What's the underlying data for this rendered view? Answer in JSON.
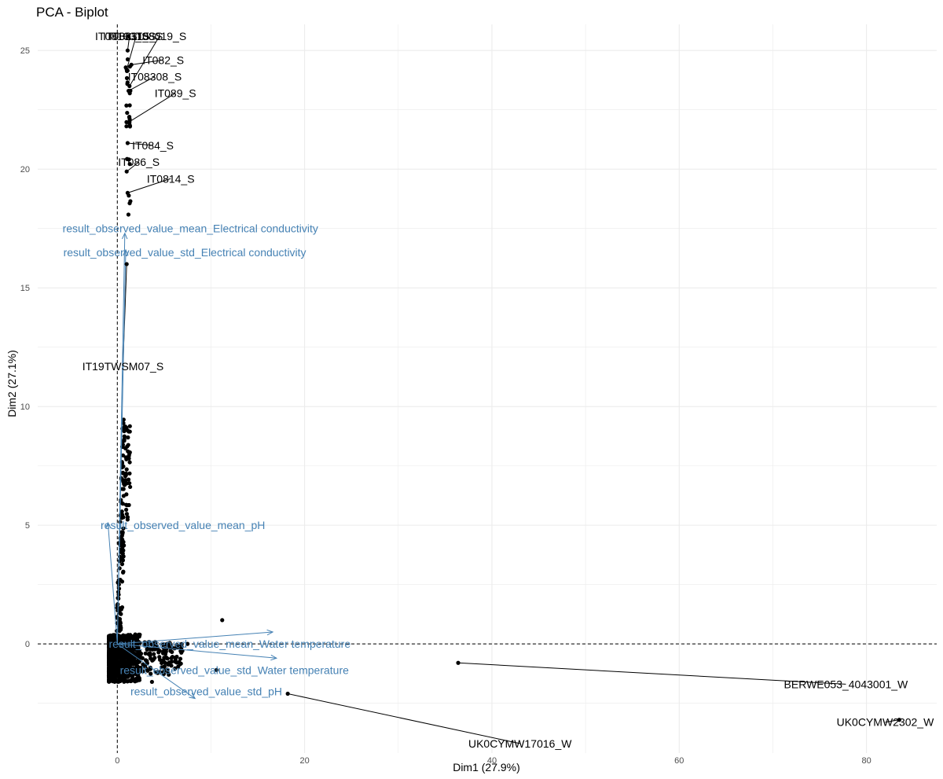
{
  "chart_data": {
    "type": "scatter",
    "title": "PCA - Biplot",
    "xlabel": "Dim1 (27.9%)",
    "ylabel": "Dim2 (27.1%)",
    "xlim": [
      -8.5,
      87.5
    ],
    "ylim": [
      -4.6,
      26.1
    ],
    "xticks": [
      0,
      20,
      40,
      60,
      80
    ],
    "yticks": [
      0,
      5,
      10,
      15,
      20,
      25
    ],
    "grid": true,
    "reference_lines": {
      "x": 0,
      "y": 0
    },
    "colors": {
      "points": "#000000",
      "variables": "#4682b4",
      "grid": "#ebebeb"
    },
    "labeled_points": [
      {
        "label": "IT08103_S",
        "x": 1.2,
        "y": 25.6,
        "lx": 0.5,
        "ly": 25.6
      },
      {
        "label": "IT08211_S",
        "x": 1.1,
        "y": 25.0,
        "lx": 1.3,
        "ly": 25.6
      },
      {
        "label": "IT08315_S",
        "x": 1.0,
        "y": 24.2,
        "lx": 2.0,
        "ly": 25.6
      },
      {
        "label": "IT08019_S",
        "x": 1.3,
        "y": 23.5,
        "lx": 4.5,
        "ly": 25.6
      },
      {
        "label": "IT082_S",
        "x": 1.5,
        "y": 24.4,
        "lx": 4.9,
        "ly": 24.6
      },
      {
        "label": "IT08308_S",
        "x": 1.2,
        "y": 23.3,
        "lx": 4.0,
        "ly": 23.9
      },
      {
        "label": "IT089_S",
        "x": 1.3,
        "y": 22.0,
        "lx": 6.2,
        "ly": 23.2
      },
      {
        "label": "IT084_S",
        "x": 1.1,
        "y": 21.1,
        "lx": 3.8,
        "ly": 21.0
      },
      {
        "label": "IT086_S",
        "x": 1.0,
        "y": 19.9,
        "lx": 2.3,
        "ly": 20.3
      },
      {
        "label": "IT0814_S",
        "x": 1.1,
        "y": 19.0,
        "lx": 5.7,
        "ly": 19.6
      },
      {
        "label": "IT19TWSM07_S",
        "x": 1.0,
        "y": 16.0,
        "lx": 0.6,
        "ly": 11.7
      },
      {
        "label": "BERWE053_4043001_W",
        "x": 36.4,
        "y": -0.8,
        "lx": 77.8,
        "ly": -1.7
      },
      {
        "label": "UK0CYMW2302_W",
        "x": 83.5,
        "y": -3.2,
        "lx": 82.0,
        "ly": -3.3
      },
      {
        "label": "UK0CYMW17016_W",
        "x": 18.2,
        "y": -2.1,
        "lx": 43.0,
        "ly": -4.2
      }
    ],
    "variables": [
      {
        "name": "result_observed_value_mean_Electrical conductivity",
        "x": 0.8,
        "y": 17.3,
        "lx": 7.8,
        "ly": 17.5
      },
      {
        "name": "result_observed_value_std_Electrical conductivity",
        "x": 0.9,
        "y": 16.6,
        "lx": 7.2,
        "ly": 16.5
      },
      {
        "name": "result_observed_value_mean_pH",
        "x": -1.0,
        "y": 5.1,
        "lx": 7.0,
        "ly": 5.0
      },
      {
        "name": "result_observed_value_mean_Water temperature",
        "x": 16.6,
        "y": 0.5,
        "lx": 12.0,
        "ly": 0.0
      },
      {
        "name": "result_observed_value_std_Water temperature",
        "x": 17.0,
        "y": -0.6,
        "lx": 12.5,
        "ly": -1.1
      },
      {
        "name": "result_observed_value_std_pH",
        "x": 8.3,
        "y": -2.3,
        "lx": 9.5,
        "ly": -2.0
      }
    ]
  }
}
